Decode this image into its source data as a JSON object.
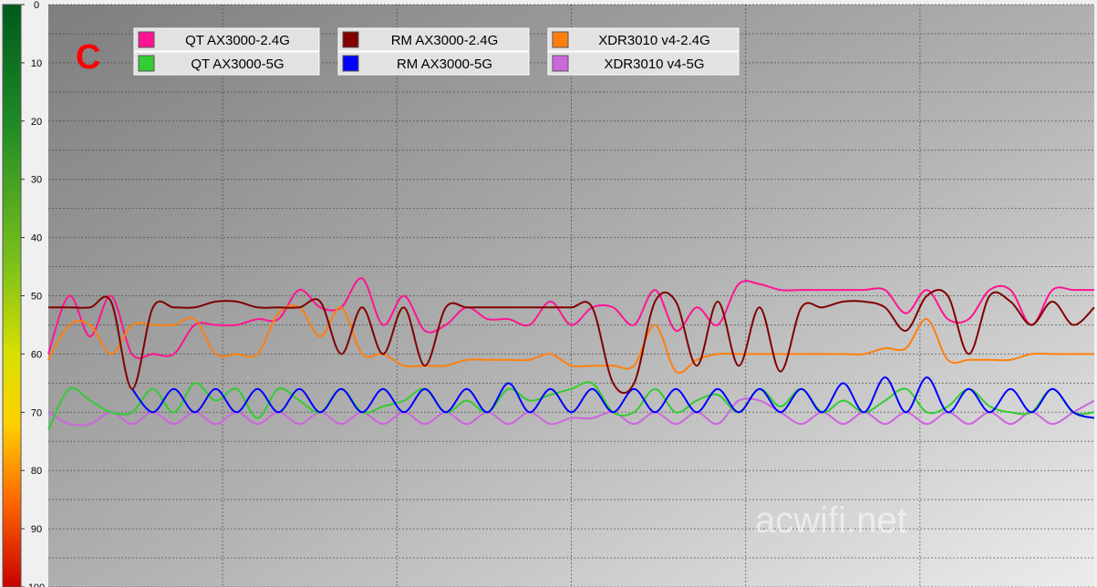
{
  "panel_label": "C",
  "watermark": "acwifi.net",
  "chart_data": {
    "type": "line",
    "title": "",
    "xlabel": "",
    "ylabel": "",
    "ylim": [
      0,
      100
    ],
    "y_inverted": true,
    "yticks": [
      0,
      10,
      20,
      30,
      40,
      50,
      60,
      70,
      80,
      90,
      100
    ],
    "grid": true,
    "legend_position": "top-left",
    "x": [
      0,
      1,
      2,
      3,
      4,
      5,
      6,
      7,
      8,
      9,
      10,
      11,
      12,
      13,
      14,
      15,
      16,
      17,
      18,
      19,
      20,
      21,
      22,
      23,
      24,
      25,
      26,
      27,
      28,
      29,
      30,
      31,
      32,
      33,
      34,
      35,
      36,
      37,
      38,
      39,
      40,
      41,
      42,
      43,
      44,
      45,
      46,
      47,
      48,
      49,
      50
    ],
    "series": [
      {
        "name": "QT AX3000-2.4G",
        "color": "#ff1493",
        "values": [
          60,
          50,
          57,
          50,
          60,
          60,
          60,
          55,
          55,
          55,
          54,
          54,
          49,
          52,
          52,
          47,
          55,
          50,
          56,
          55,
          52,
          54,
          54,
          55,
          51,
          55,
          52,
          52,
          55,
          49,
          56,
          52,
          55,
          48,
          48,
          49,
          49,
          49,
          49,
          49,
          49,
          53,
          49,
          54,
          54,
          49,
          49,
          55,
          49,
          49,
          49
        ]
      },
      {
        "name": "QT AX3000-5G",
        "color": "#33cc33",
        "values": [
          73,
          66,
          68,
          70,
          70,
          66,
          70,
          65,
          68,
          66,
          71,
          66,
          68,
          70,
          66,
          70,
          69,
          68,
          66,
          70,
          68,
          70,
          66,
          68,
          67,
          66,
          65,
          70,
          70,
          66,
          70,
          68,
          67,
          70,
          66,
          69,
          66,
          70,
          68,
          70,
          68,
          66,
          70,
          69,
          66,
          69,
          70,
          70,
          66,
          70,
          70
        ]
      },
      {
        "name": "RM AX3000-2.4G",
        "color": "#800000",
        "values": [
          52,
          52,
          52,
          51,
          66,
          52,
          52,
          52,
          51,
          51,
          52,
          52,
          52,
          51,
          60,
          52,
          60,
          52,
          62,
          52,
          52,
          52,
          52,
          52,
          52,
          52,
          52,
          65,
          65,
          51,
          51,
          62,
          51,
          62,
          52,
          63,
          52,
          52,
          51,
          51,
          52,
          56,
          50,
          50,
          60,
          50,
          51,
          55,
          51,
          55,
          52
        ]
      },
      {
        "name": "RM AX3000-5G",
        "color": "#0000ff",
        "values": [
          null,
          null,
          null,
          null,
          66,
          70,
          66,
          70,
          66,
          70,
          66,
          70,
          66,
          70,
          66,
          70,
          66,
          70,
          66,
          70,
          66,
          70,
          65,
          70,
          66,
          70,
          66,
          70,
          66,
          70,
          66,
          70,
          66,
          70,
          66,
          70,
          66,
          70,
          65,
          70,
          64,
          70,
          64,
          70,
          66,
          70,
          66,
          70,
          66,
          70,
          71
        ]
      },
      {
        "name": "XDR3010 v4-2.4G",
        "color": "#ff7f0e",
        "values": [
          61,
          55,
          55,
          60,
          55,
          55,
          55,
          54,
          60,
          60,
          60,
          53,
          52,
          57,
          52,
          60,
          60,
          62,
          62,
          62,
          61,
          61,
          61,
          61,
          60,
          62,
          62,
          62,
          62,
          55,
          63,
          61,
          60,
          60,
          60,
          60,
          60,
          60,
          60,
          60,
          59,
          59,
          54,
          61,
          61,
          61,
          61,
          60,
          60,
          60,
          60
        ]
      },
      {
        "name": "XDR3010 v4-5G",
        "color": "#cc66dd",
        "values": [
          70,
          72,
          72,
          70,
          72,
          70,
          72,
          70,
          72,
          70,
          72,
          70,
          72,
          70,
          72,
          70,
          72,
          70,
          72,
          70,
          72,
          70,
          72,
          70,
          72,
          71,
          71,
          70,
          72,
          70,
          72,
          70,
          72,
          68,
          68,
          70,
          72,
          70,
          72,
          70,
          72,
          70,
          72,
          70,
          72,
          70,
          72,
          70,
          72,
          70,
          68
        ]
      }
    ]
  }
}
